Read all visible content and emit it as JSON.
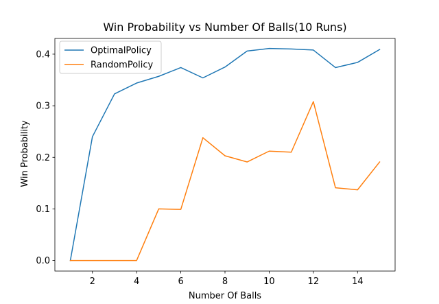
{
  "chart_data": {
    "type": "line",
    "title": "Win Probability vs Number Of Balls(10 Runs)",
    "xlabel": "Number Of Balls",
    "ylabel": "Win Probability",
    "x": [
      1,
      2,
      3,
      4,
      5,
      6,
      7,
      8,
      9,
      10,
      11,
      12,
      13,
      14,
      15
    ],
    "xticks": [
      2,
      4,
      6,
      8,
      10,
      12,
      14
    ],
    "yticks": [
      0.0,
      0.1,
      0.2,
      0.3,
      0.4
    ],
    "ytick_labels": [
      "0.0",
      "0.1",
      "0.2",
      "0.3",
      "0.4"
    ],
    "xlim": [
      0.3,
      15.7
    ],
    "ylim": [
      -0.0205,
      0.4305
    ],
    "grid": false,
    "legend_position": "top-left",
    "series": [
      {
        "name": "OptimalPolicy",
        "color": "#1f77b4",
        "values": [
          0.0,
          0.24,
          0.323,
          0.344,
          0.357,
          0.374,
          0.354,
          0.375,
          0.406,
          0.411,
          0.41,
          0.408,
          0.374,
          0.384,
          0.409
        ]
      },
      {
        "name": "RandomPolicy",
        "color": "#ff7f0e",
        "values": [
          0.0,
          0.0,
          0.0,
          0.0,
          0.1,
          0.099,
          0.238,
          0.203,
          0.191,
          0.212,
          0.21,
          0.308,
          0.141,
          0.137,
          0.191
        ]
      }
    ]
  }
}
